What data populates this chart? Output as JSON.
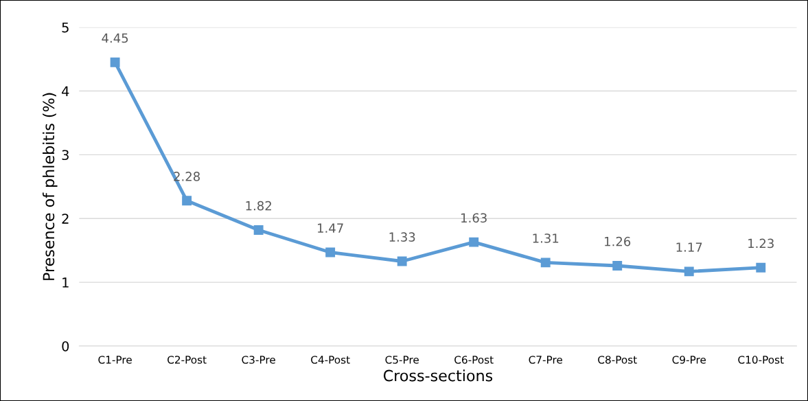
{
  "chart_data": {
    "type": "line",
    "xlabel": "Cross-sections",
    "ylabel": "Presence of phlebitis (%)",
    "categories": [
      "C1-Pre",
      "C2-Post",
      "C3-Pre",
      "C4-Post",
      "C5-Pre",
      "C6-Post",
      "C7-Pre",
      "C8-Post",
      "C9-Pre",
      "C10-Post"
    ],
    "series": [
      {
        "color": "#5b9bd5",
        "values": [
          4.45,
          2.28,
          1.82,
          1.47,
          1.33,
          1.63,
          1.31,
          1.26,
          1.17,
          1.23
        ]
      }
    ],
    "ylim": [
      0,
      5
    ],
    "yticks": [
      0,
      1,
      2,
      3,
      4,
      5
    ],
    "grid": "y",
    "marker": "square",
    "line_style": "solid",
    "data_labels": true
  }
}
